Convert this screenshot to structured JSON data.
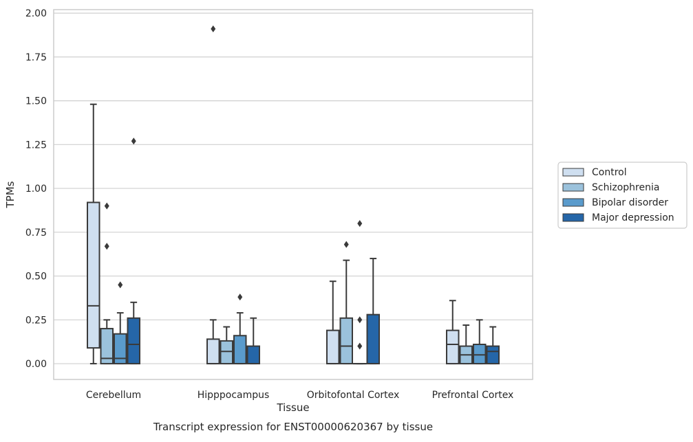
{
  "chart_data": {
    "type": "box",
    "title": "Transcript expression for ENST00000620367 by tissue",
    "xlabel": "Tissue",
    "ylabel": "TPMs",
    "ylim": [
      -0.09,
      2.02
    ],
    "yticks": [
      "0.00",
      "0.25",
      "0.50",
      "0.75",
      "1.00",
      "1.25",
      "1.50",
      "1.75",
      "2.00"
    ],
    "grid": true,
    "legend_position": "right",
    "categories": [
      "Cerebellum",
      "Hipppocampus",
      "Orbitofontal Cortex",
      "Prefrontal Cortex"
    ],
    "series": [
      {
        "name": "Control",
        "color": "#cfdff0",
        "boxes": [
          {
            "q1": 0.09,
            "median": 0.33,
            "q3": 0.92,
            "low": 0.0,
            "high": 1.48,
            "outliers": []
          },
          {
            "q1": 0.0,
            "median": 0.0,
            "q3": 0.14,
            "low": 0.0,
            "high": 0.25,
            "outliers": [
              1.91
            ]
          },
          {
            "q1": 0.0,
            "median": 0.0,
            "q3": 0.19,
            "low": 0.0,
            "high": 0.47,
            "outliers": []
          },
          {
            "q1": 0.0,
            "median": 0.11,
            "q3": 0.19,
            "low": 0.0,
            "high": 0.36,
            "outliers": []
          }
        ]
      },
      {
        "name": "Schizophrenia",
        "color": "#9bc2dc",
        "boxes": [
          {
            "q1": 0.0,
            "median": 0.03,
            "q3": 0.2,
            "low": 0.0,
            "high": 0.25,
            "outliers": [
              0.9,
              0.67
            ]
          },
          {
            "q1": 0.0,
            "median": 0.07,
            "q3": 0.13,
            "low": 0.0,
            "high": 0.21,
            "outliers": []
          },
          {
            "q1": 0.0,
            "median": 0.1,
            "q3": 0.26,
            "low": 0.0,
            "high": 0.59,
            "outliers": [
              0.68
            ]
          },
          {
            "q1": 0.0,
            "median": 0.05,
            "q3": 0.1,
            "low": 0.0,
            "high": 0.22,
            "outliers": []
          }
        ]
      },
      {
        "name": "Bipolar disorder",
        "color": "#5a9bcc",
        "boxes": [
          {
            "q1": 0.0,
            "median": 0.03,
            "q3": 0.17,
            "low": 0.0,
            "high": 0.29,
            "outliers": [
              0.45
            ]
          },
          {
            "q1": 0.0,
            "median": 0.0,
            "q3": 0.16,
            "low": 0.0,
            "high": 0.29,
            "outliers": [
              0.38
            ]
          },
          {
            "q1": 0.0,
            "median": 0.0,
            "q3": 0.0,
            "low": 0.0,
            "high": 0.0,
            "outliers": [
              0.8,
              0.25,
              0.1
            ]
          },
          {
            "q1": 0.0,
            "median": 0.05,
            "q3": 0.11,
            "low": 0.0,
            "high": 0.25,
            "outliers": []
          }
        ]
      },
      {
        "name": "Major depression",
        "color": "#2566a8",
        "boxes": [
          {
            "q1": 0.0,
            "median": 0.11,
            "q3": 0.26,
            "low": 0.0,
            "high": 0.35,
            "outliers": [
              1.27
            ]
          },
          {
            "q1": 0.0,
            "median": 0.0,
            "q3": 0.1,
            "low": 0.0,
            "high": 0.26,
            "outliers": []
          },
          {
            "q1": 0.0,
            "median": 0.0,
            "q3": 0.28,
            "low": 0.0,
            "high": 0.6,
            "outliers": []
          },
          {
            "q1": 0.0,
            "median": 0.07,
            "q3": 0.1,
            "low": 0.0,
            "high": 0.21,
            "outliers": []
          }
        ]
      }
    ]
  }
}
